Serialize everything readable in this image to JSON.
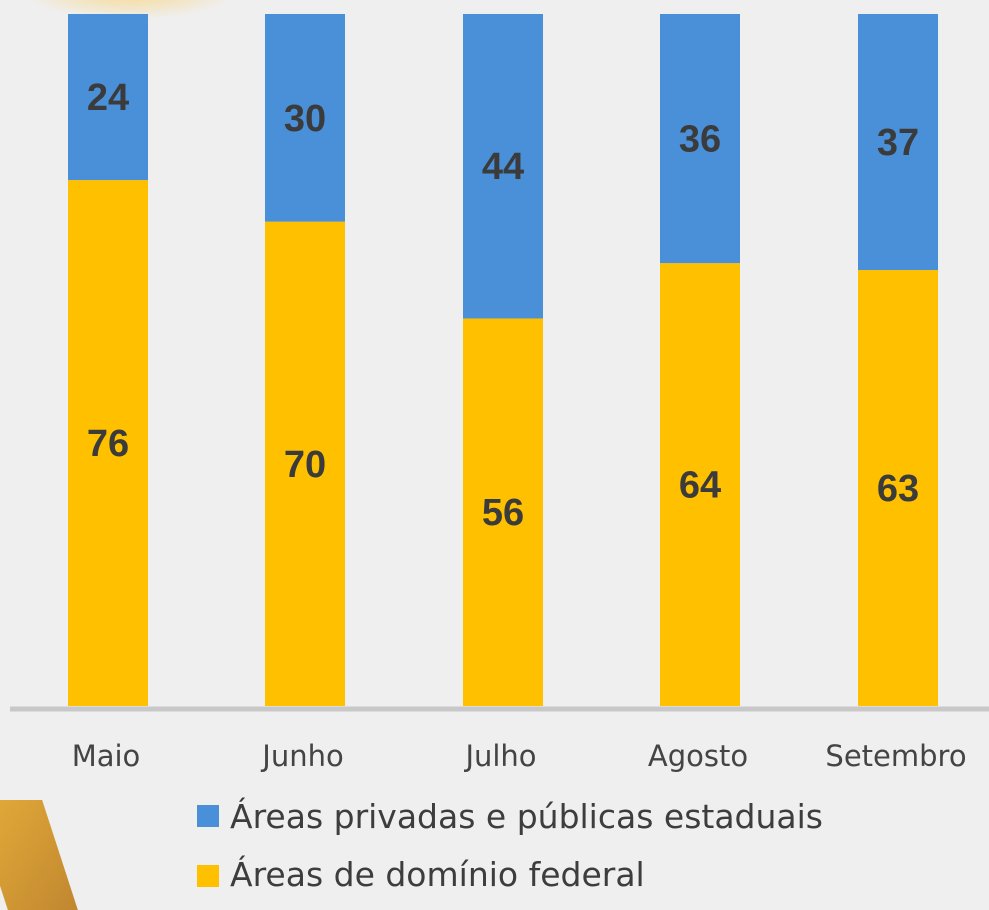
{
  "chart_data": {
    "type": "bar",
    "stacked": true,
    "categories": [
      "Maio",
      "Junho",
      "Julho",
      "Agosto",
      "Setembro"
    ],
    "series": [
      {
        "name": "Áreas de domínio federal",
        "values": [
          76,
          70,
          56,
          64,
          63
        ],
        "color": "#ffc000"
      },
      {
        "name": "Áreas privadas e públicas estaduais",
        "values": [
          24,
          30,
          44,
          36,
          37
        ],
        "color": "#4a90d9"
      }
    ],
    "ylim": [
      0,
      100
    ],
    "grid": false,
    "legend": {
      "placement": "bottom",
      "entries": [
        "Áreas privadas e públicas estaduais",
        "Áreas de domínio federal"
      ]
    },
    "axis_color": "#c8c8c8"
  }
}
